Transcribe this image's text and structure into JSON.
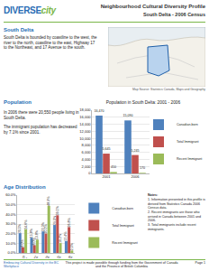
{
  "header": {
    "logo": [
      "DIVERSE",
      "city"
    ],
    "title": "Neighbourhood Cultural Diversity Profile",
    "subtitle": "South Delta - 2006 Census"
  },
  "area": {
    "heading": "South Delta",
    "text": "South Delta is bounded by coastline to the west, the river to the north, coastline to the east, Highway 17 to the Northeast, and 17 Avenue to the south.",
    "map_caption": "Map Source: Statistics Canada, Maps and Geography"
  },
  "population": {
    "heading": "Population",
    "paragraphs": [
      "In 2006 there were 20,550 people living in South Delta.",
      "The immigrant population has decreased by 7.1% since 2001."
    ]
  },
  "age": {
    "heading": "Age Distribution",
    "notes_title": "Notes:",
    "notes": [
      "1. Information presented in this profile is derived from Statistics Canada 2006 Census data.",
      "2. Recent immigrants are those who arrived in Canada between 2001 and 2006.",
      "3. Total immigrants include recent immigrants."
    ]
  },
  "footer": {
    "left": "Embracing Cultural Diversity in the BC Workplace",
    "center": "This project is made possible through funding from the Government of Canada and the Province of British Columbia",
    "right": "Page 1"
  },
  "chart_data": [
    {
      "type": "bar",
      "title": "Population in South Delta: 2001 - 2006",
      "categories": [
        "2001",
        "2006"
      ],
      "series": [
        {
          "name": "Canadian-born",
          "color": "#4f81bd",
          "values": [
            16470,
            15090
          ],
          "value_labels": [
            "16,470",
            "15,090"
          ]
        },
        {
          "name": "Total Immigrant",
          "color": "#c0504d",
          "values": [
            5645,
            5245
          ],
          "value_labels": [
            "5,645",
            "5,245"
          ]
        },
        {
          "name": "Recent Immigrant",
          "color": "#9bbb59",
          "values": [
            410,
            170
          ]
        }
      ],
      "ylim": [
        0,
        18000
      ],
      "yticks": [
        0,
        {
          "value": 2000,
          "label": "2,000"
        },
        {
          "value": 4000,
          "label": "4,000"
        },
        {
          "value": 6000,
          "label": "6,000"
        },
        {
          "value": 8000,
          "label": "8,000"
        },
        {
          "value": 10000,
          "label": "10,000"
        },
        {
          "value": 12000,
          "label": "12,000"
        },
        {
          "value": 14000,
          "label": "14,000"
        },
        {
          "value": 16000,
          "label": "16,000"
        },
        {
          "value": 18000,
          "label": "18,000"
        }
      ],
      "grid": true,
      "legend": "right",
      "data_labels": true
    },
    {
      "type": "bar",
      "categories": [
        "0-14",
        "15-24",
        "25-44",
        "45-64",
        "65+"
      ],
      "series": [
        {
          "name": "Canadian-born",
          "color": "#4f81bd",
          "values": [
            20.5,
            15.8,
            22.3,
            29.0,
            12.4
          ],
          "value_labels": [
            "20.5%",
            "15.8%",
            "22.3%",
            "29.0%",
            "12.4%"
          ]
        },
        {
          "name": "Total Immigrant",
          "color": "#c0504d",
          "values": [
            6.0,
            8.0,
            20.1,
            39.1,
            26.8
          ],
          "value_labels": [
            "6.0%",
            "8.0%",
            "20.1%",
            "39.1%",
            "26.8%"
          ]
        },
        {
          "name": "Recent Immigrant",
          "color": "#9bbb59",
          "values": [
            24.6,
            13.8,
            48.9,
            10.2,
            2.5
          ],
          "value_labels": [
            "24.6%",
            "13.8%",
            "48.9%",
            "10.2%",
            "2.5%"
          ]
        }
      ],
      "ylim": [
        0,
        60
      ],
      "yticks": [
        {
          "value": 0,
          "label": "0.0%"
        },
        {
          "value": 10,
          "label": "10.0%"
        },
        {
          "value": 20,
          "label": "20.0%"
        },
        {
          "value": 30,
          "label": "30.0%"
        },
        {
          "value": 40,
          "label": "40.0%"
        },
        {
          "value": 50,
          "label": "50.0%"
        },
        {
          "value": 60,
          "label": "60.0%"
        }
      ],
      "grid": true,
      "legend": "right",
      "data_labels": true
    }
  ]
}
